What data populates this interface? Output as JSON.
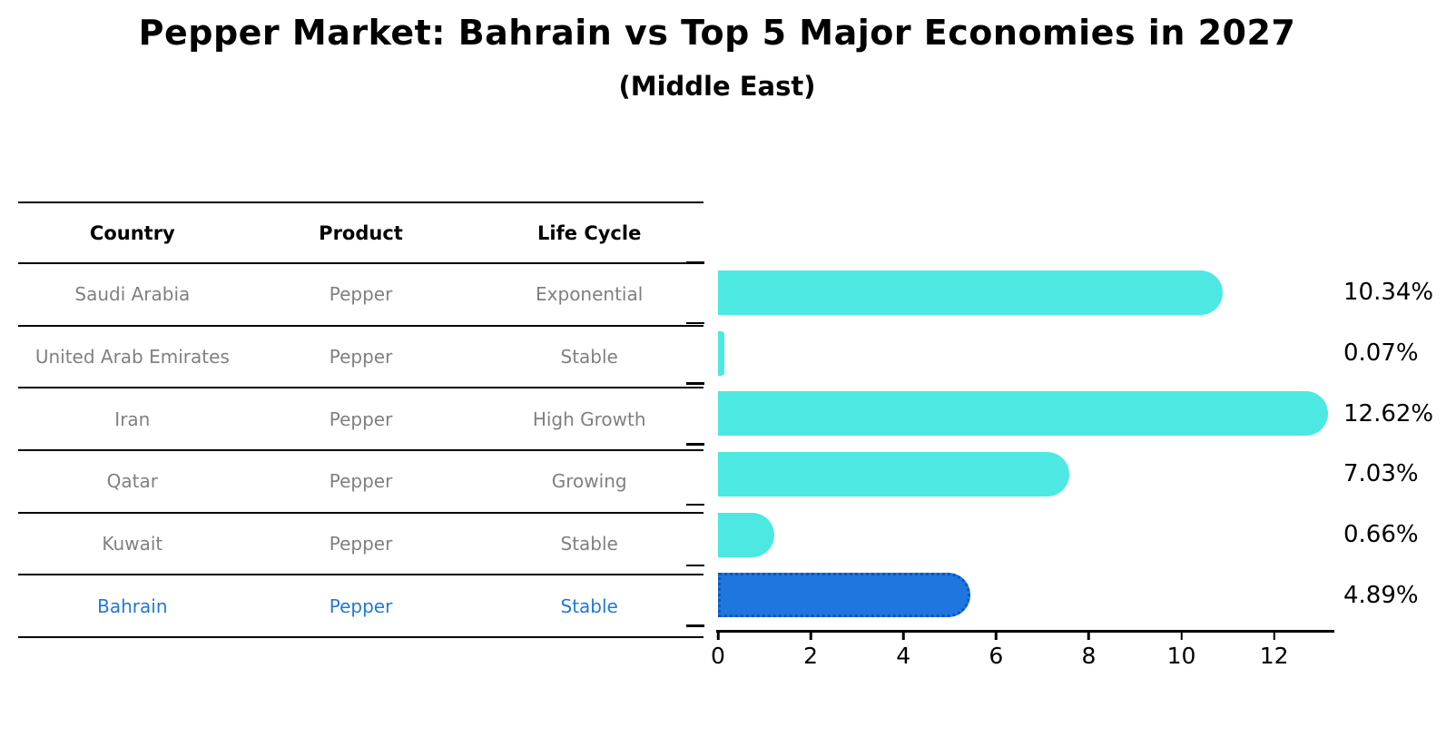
{
  "title": "Pepper Market: Bahrain vs Top 5 Major Economies in 2027",
  "subtitle": "(Middle East)",
  "table": {
    "headers": [
      "Country",
      "Product",
      "Life Cycle"
    ],
    "rows": [
      {
        "country": "Saudi Arabia",
        "product": "Pepper",
        "life_cycle": "Exponential",
        "value_label": "10.34%"
      },
      {
        "country": "United Arab Emirates",
        "product": "Pepper",
        "life_cycle": "Stable",
        "value_label": "0.07%"
      },
      {
        "country": "Iran",
        "product": "Pepper",
        "life_cycle": "High Growth",
        "value_label": "12.62%"
      },
      {
        "country": "Qatar",
        "product": "Pepper",
        "life_cycle": "Growing",
        "value_label": "7.03%"
      },
      {
        "country": "Kuwait",
        "product": "Pepper",
        "life_cycle": "Stable",
        "value_label": "0.66%"
      },
      {
        "country": "Bahrain",
        "product": "Pepper",
        "life_cycle": "Stable",
        "value_label": "4.89%"
      }
    ],
    "highlighted_row": "Bahrain"
  },
  "chart_data": {
    "type": "bar",
    "orientation": "horizontal",
    "title": "Pepper Market: Bahrain vs Top 5 Major Economies in 2027",
    "subtitle": "(Middle East)",
    "categories": [
      "Saudi Arabia",
      "United Arab Emirates",
      "Iran",
      "Qatar",
      "Kuwait",
      "Bahrain"
    ],
    "values": [
      10.34,
      0.07,
      12.62,
      7.03,
      0.66,
      4.89
    ],
    "value_labels": [
      "10.34%",
      "0.07%",
      "12.62%",
      "7.03%",
      "0.66%",
      "4.89%"
    ],
    "x_ticks": [
      0,
      2,
      4,
      6,
      8,
      10,
      12
    ],
    "xlim": [
      0,
      13.3
    ],
    "xlabel": "",
    "ylabel": "",
    "grid": false,
    "legend": false,
    "highlight_index": 5,
    "bar_color": "#4DE8E2",
    "highlight_bar_color": "#1F76DF",
    "highlight_border_color": "#0D55C0"
  },
  "colors": {
    "title_text": "#000000",
    "row_text": "#808080",
    "highlight_text": "#2179D4",
    "axis": "#000000"
  }
}
